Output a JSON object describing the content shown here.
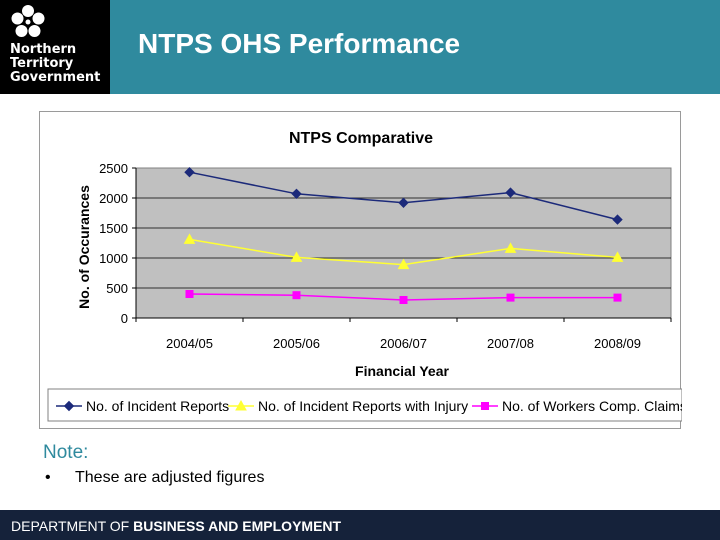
{
  "header": {
    "logo_lines": [
      "Northern",
      "Territory",
      "Government"
    ],
    "title": "NTPS OHS Performance",
    "bg_color": "#2f8a9e",
    "logo_icon": "nt-flower-icon"
  },
  "chart_data": {
    "type": "line",
    "title": "NTPS Comparative",
    "xlabel": "Financial Year",
    "ylabel": "No. of Occurances",
    "categories": [
      "2004/05",
      "2005/06",
      "2006/07",
      "2007/08",
      "2008/09"
    ],
    "ylim": [
      0,
      2500
    ],
    "yticks": [
      0,
      500,
      1000,
      1500,
      2000,
      2500
    ],
    "grid": true,
    "legend_position": "bottom",
    "series": [
      {
        "name": "No. of Incident Reports",
        "values": [
          2430,
          2070,
          1920,
          2090,
          1640
        ],
        "color": "#1c2a7a",
        "marker": "diamond"
      },
      {
        "name": "No. of Incident Reports with Injury",
        "values": [
          1310,
          1010,
          890,
          1160,
          1010
        ],
        "color": "#ffff33",
        "marker": "triangle"
      },
      {
        "name": "No. of Workers Comp. Claims",
        "values": [
          400,
          380,
          300,
          340,
          340
        ],
        "color": "#ff00ff",
        "marker": "square"
      }
    ]
  },
  "note": {
    "label": "Note:",
    "bullet": "•",
    "items": [
      "These are adjusted figures"
    ]
  },
  "footer": {
    "prefix": "DEPARTMENT OF ",
    "bold": "BUSINESS AND EMPLOYMENT"
  }
}
